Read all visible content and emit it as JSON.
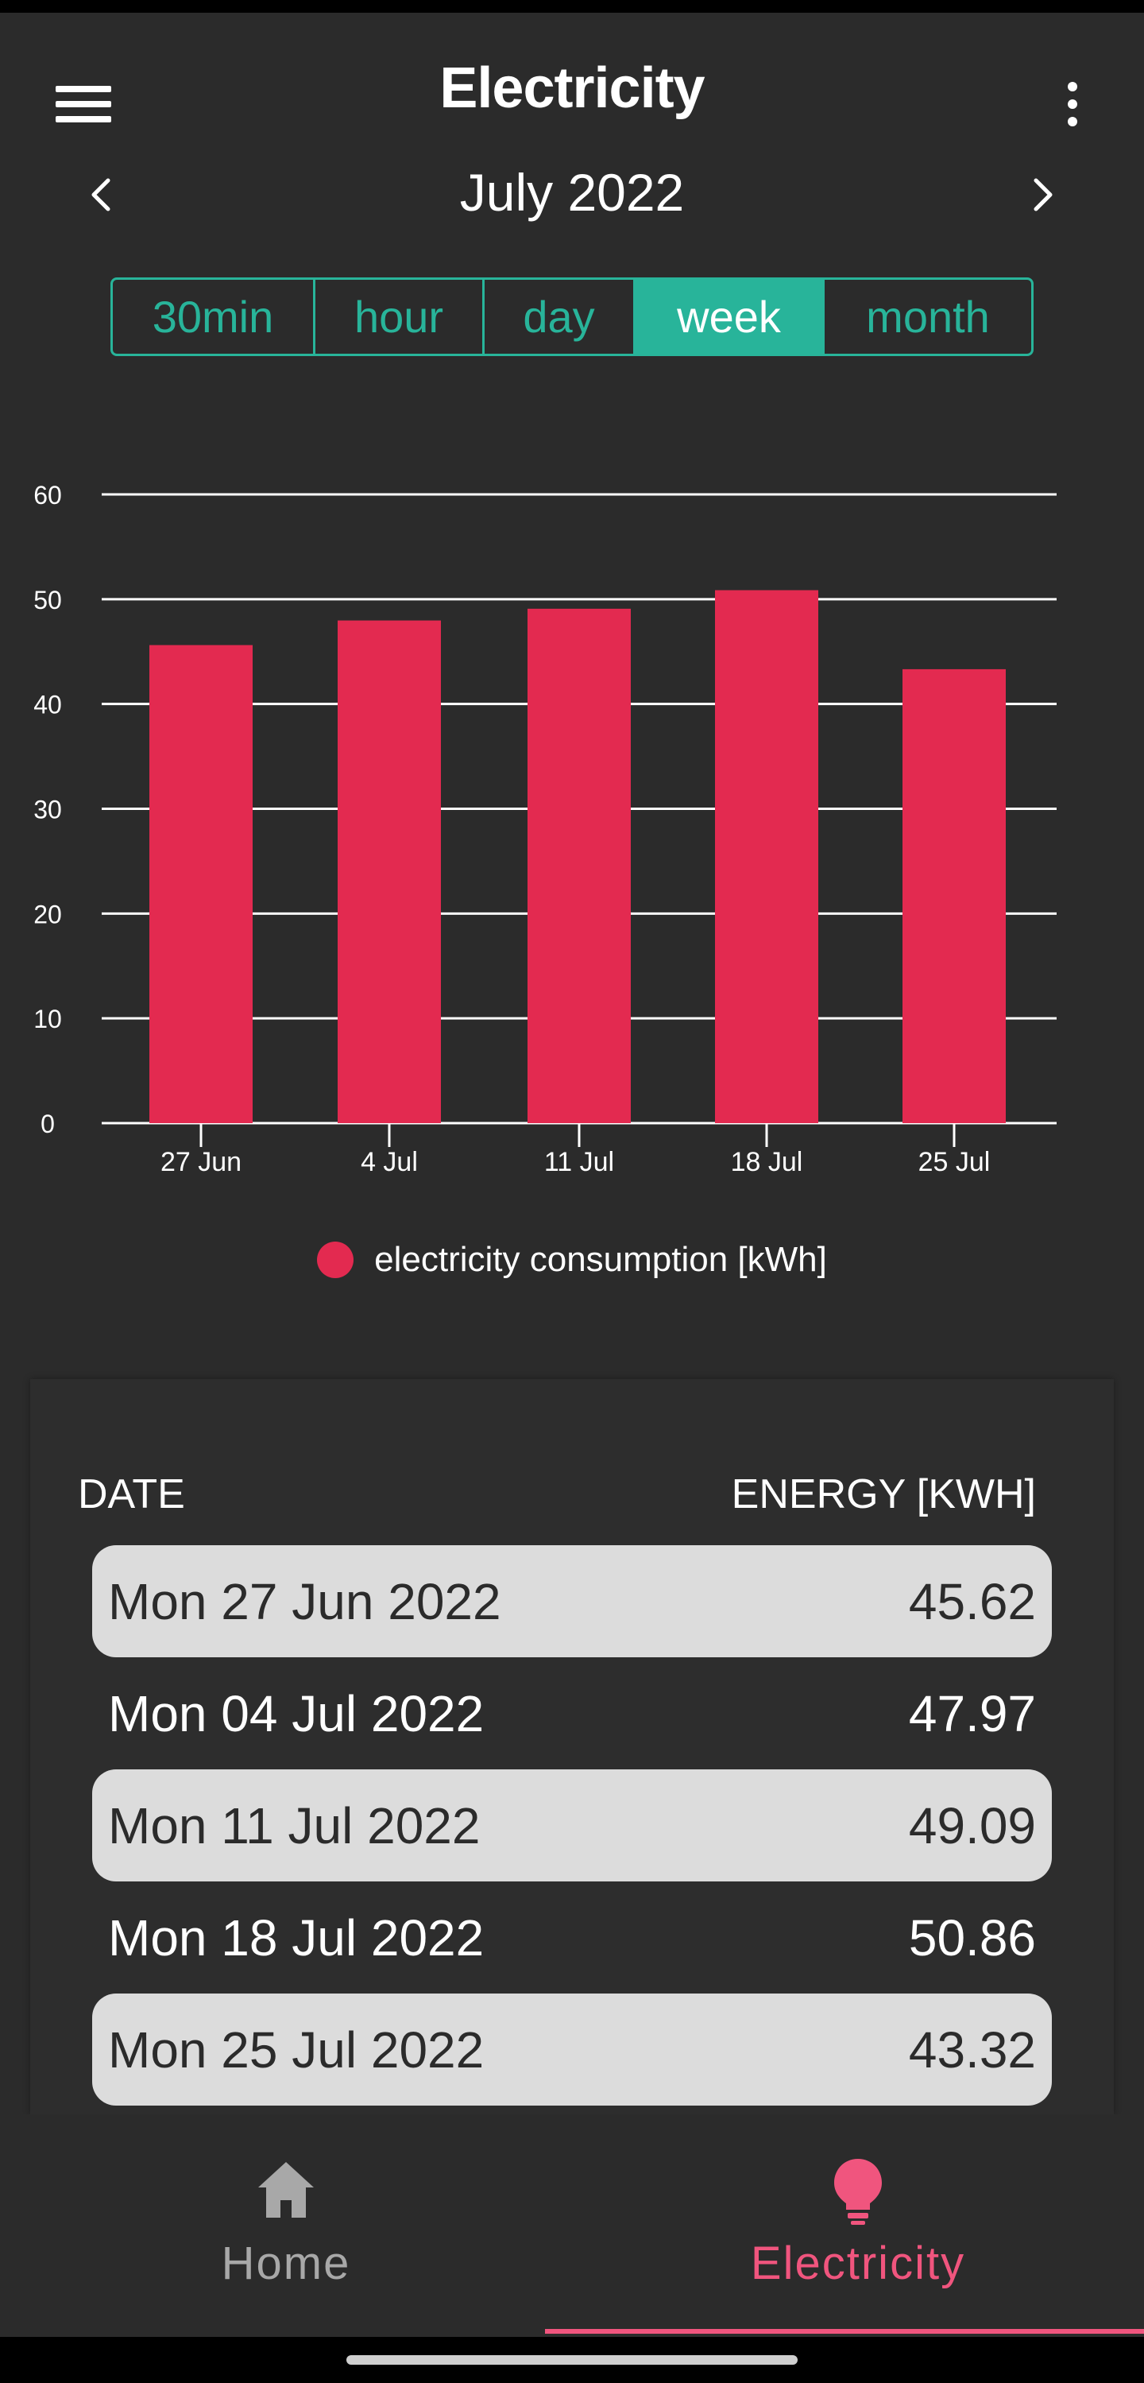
{
  "app_bar": {
    "title": "Electricity",
    "menu_icon": "hamburger-menu-icon",
    "more_icon": "more-vert-icon"
  },
  "month_nav": {
    "label": "July 2022",
    "prev_icon": "chevron-left-icon",
    "next_icon": "chevron-right-icon"
  },
  "range_tabs": [
    {
      "label": "30min",
      "active": false
    },
    {
      "label": "hour",
      "active": false
    },
    {
      "label": "day",
      "active": false
    },
    {
      "label": "week",
      "active": true
    },
    {
      "label": "month",
      "active": false
    }
  ],
  "chart_data": {
    "type": "bar",
    "categories": [
      "27 Jun",
      "4 Jul",
      "11 Jul",
      "18 Jul",
      "25 Jul"
    ],
    "values": [
      45.62,
      47.97,
      49.09,
      50.86,
      43.32
    ],
    "series_name": "electricity consumption [kWh]",
    "title": "",
    "xlabel": "",
    "ylabel": "",
    "ylim": [
      0,
      60
    ],
    "yticks": [
      0,
      10,
      20,
      30,
      40,
      50,
      60
    ],
    "grid": true,
    "legend": "bottom-center",
    "bar_color": "#e32a50"
  },
  "legend": {
    "label": "electricity consumption [kWh]"
  },
  "table": {
    "headers": {
      "date": "DATE",
      "energy": "ENERGY [KWH]"
    },
    "rows": [
      {
        "date": "Mon 27 Jun 2022",
        "energy": "45.62"
      },
      {
        "date": "Mon 04 Jul 2022",
        "energy": "47.97"
      },
      {
        "date": "Mon 11 Jul 2022",
        "energy": "49.09"
      },
      {
        "date": "Mon 18 Jul 2022",
        "energy": "50.86"
      },
      {
        "date": "Mon 25 Jul 2022",
        "energy": "43.32"
      }
    ]
  },
  "bottom_nav": {
    "home": {
      "label": "Home",
      "icon": "home-icon"
    },
    "electricity": {
      "label": "Electricity",
      "icon": "lightbulb-icon",
      "active": true
    }
  },
  "colors": {
    "accent": "#28b49a",
    "bar": "#e32a50",
    "active_nav": "#f0557e",
    "background": "#2b2b2b"
  }
}
